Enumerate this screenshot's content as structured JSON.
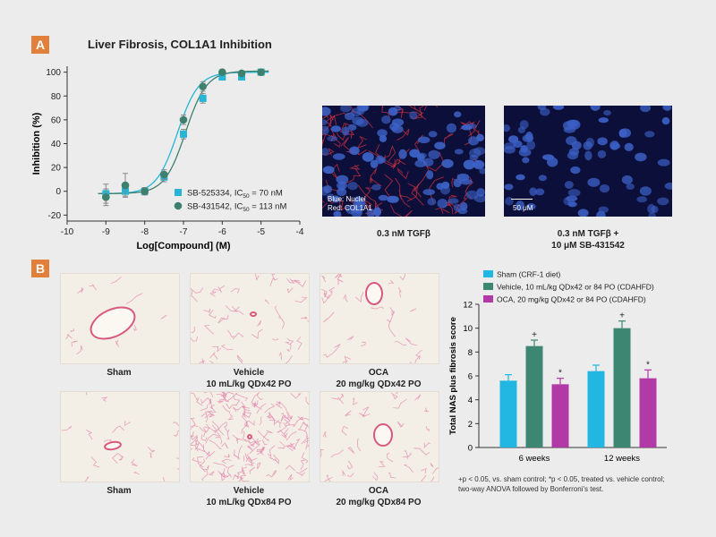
{
  "panel_a": {
    "badge": "A",
    "title": "Liver Fibrosis, COL1A1 Inhibition",
    "image_left_caption": "0.3 nM TGFβ",
    "image_left_labels": [
      "Blue: Nuclei",
      "Red: COL1A1"
    ],
    "image_right_caption_lines": [
      "0.3 nM TGFβ +",
      "10 μM SB-431542"
    ],
    "scale_bar_label": "50 μM"
  },
  "panel_b": {
    "badge": "B",
    "histology": [
      {
        "caption_lines": [
          "Sham"
        ]
      },
      {
        "caption_lines": [
          "Vehicle",
          "10 mL/kg QDx42 PO"
        ]
      },
      {
        "caption_lines": [
          "OCA",
          "20 mg/kg QDx42 PO"
        ]
      },
      {
        "caption_lines": [
          "Sham"
        ]
      },
      {
        "caption_lines": [
          "Vehicle",
          "10 mL/kg QDx84 PO"
        ]
      },
      {
        "caption_lines": [
          "OCA",
          "20 mg/kg QDx84 PO"
        ]
      }
    ],
    "footnote_lines": [
      "+p < 0.05, vs. sham control; *p < 0.05, treated vs. vehicle control;",
      "two-way ANOVA followed by Bonferroni's test."
    ]
  },
  "chart_data": [
    {
      "type": "scatter",
      "title": "Liver Fibrosis, COL1A1 Inhibition",
      "xlabel": "Log[Compound] (M)",
      "ylabel": "Inhibition (%)",
      "xlim": [
        -10,
        -4
      ],
      "ylim": [
        -25,
        105
      ],
      "xticks": [
        -10,
        -9,
        -8,
        -7,
        -6,
        -5,
        -4
      ],
      "yticks": [
        -20,
        0,
        20,
        40,
        60,
        80,
        100
      ],
      "legend_position": "bottom-right",
      "series": [
        {
          "name": "SB-525334, IC50 = 70 nM",
          "legend_prefix": "SB-525334, IC",
          "legend_sub": "50",
          "legend_suffix": " = 70 nM",
          "marker": "square",
          "color": "#27b5d6",
          "x": [
            -9,
            -8.5,
            -8,
            -7.5,
            -7,
            -6.5,
            -6,
            -5.5,
            -5
          ],
          "y": [
            -2,
            0,
            0,
            12,
            48,
            78,
            96,
            96,
            100
          ],
          "err": [
            8,
            4,
            3,
            4,
            4,
            4,
            2,
            2,
            2
          ]
        },
        {
          "name": "SB-431542, IC50 = 113 nM",
          "legend_prefix": "SB-431542, IC",
          "legend_sub": "50",
          "legend_suffix": " = 113 nM",
          "marker": "circle",
          "color": "#3f7f6e",
          "x": [
            -9,
            -8.5,
            -8,
            -7.5,
            -7,
            -6.5,
            -6,
            -5.5,
            -5
          ],
          "y": [
            -5,
            5,
            0,
            14,
            60,
            88,
            100,
            99,
            100
          ],
          "err": [
            7,
            10,
            3,
            4,
            4,
            4,
            2,
            2,
            2
          ]
        }
      ],
      "fits": [
        {
          "color": "#27b5d6",
          "log_ic50": -7.155,
          "bottom": -2,
          "top": 100,
          "hill": 1.6
        },
        {
          "color": "#3f7f6e",
          "log_ic50": -6.947,
          "bottom": -2,
          "top": 101,
          "hill": 1.6
        }
      ]
    },
    {
      "type": "bar",
      "ylabel": "Total NAS plus fibrosis score",
      "ylim": [
        0,
        12
      ],
      "yticks": [
        0,
        2,
        4,
        6,
        8,
        10,
        12
      ],
      "categories": [
        "6 weeks",
        "12 weeks"
      ],
      "legend_position": "top",
      "series": [
        {
          "name": "Sham (CRF-1 diet)",
          "color": "#21b7e2",
          "values": [
            5.6,
            6.4
          ],
          "err": [
            0.5,
            0.5
          ],
          "marks": [
            "",
            ""
          ]
        },
        {
          "name": "Vehicle, 10 mL/kg QDx42 or 84 PO (CDAHFD)",
          "color": "#3d8672",
          "values": [
            8.5,
            10.0
          ],
          "err": [
            0.5,
            0.6
          ],
          "marks": [
            "+",
            "+"
          ]
        },
        {
          "name": "OCA, 20 mg/kg QDx42 or 84 PO (CDAHFD)",
          "color": "#b23aa6",
          "values": [
            5.3,
            5.8
          ],
          "err": [
            0.5,
            0.7
          ],
          "marks": [
            "*",
            "*"
          ]
        }
      ]
    }
  ]
}
